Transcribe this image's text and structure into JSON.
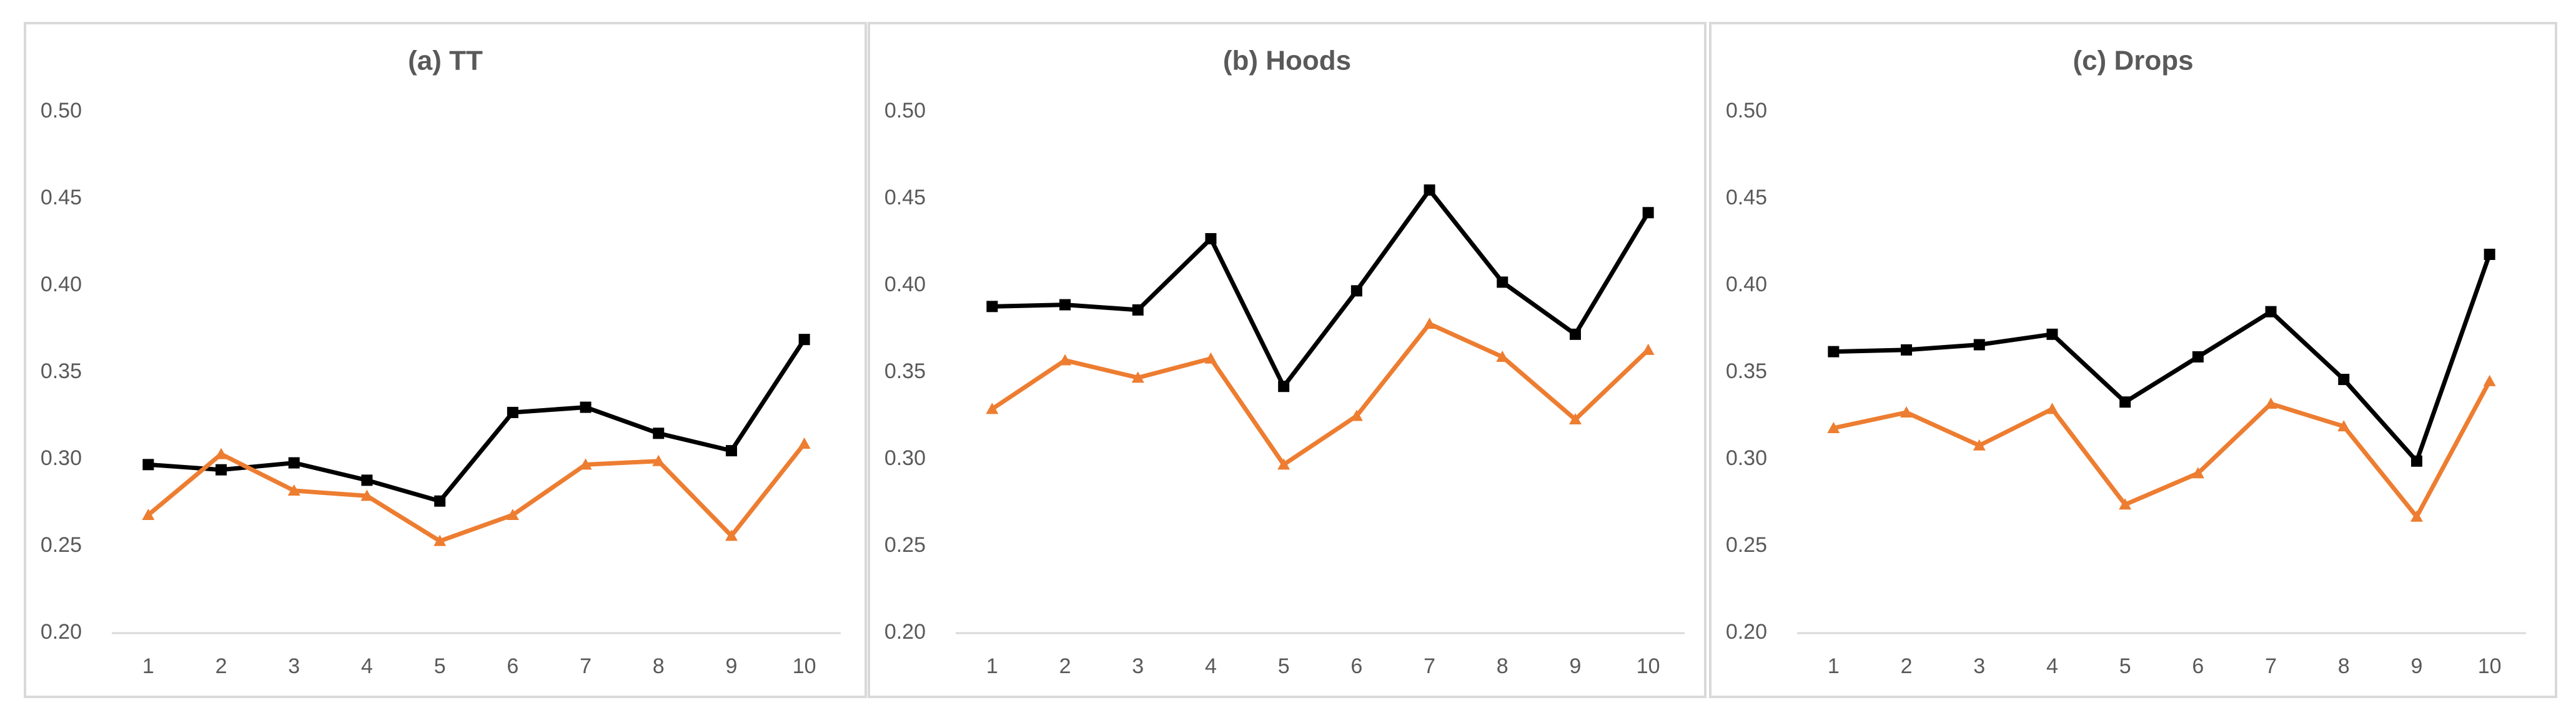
{
  "chart_data": [
    {
      "type": "line",
      "title": "(a) TT",
      "categories": [
        "1",
        "2",
        "3",
        "4",
        "5",
        "6",
        "7",
        "8",
        "9",
        "10"
      ],
      "series": [
        {
          "color": "#000000",
          "marker": "square",
          "values": [
            0.297,
            0.294,
            0.298,
            0.288,
            0.276,
            0.327,
            0.33,
            0.315,
            0.305,
            0.369
          ]
        },
        {
          "color": "#ed7d31",
          "marker": "triangle",
          "values": [
            0.268,
            0.303,
            0.282,
            0.279,
            0.253,
            0.268,
            0.297,
            0.299,
            0.256,
            0.309
          ]
        }
      ],
      "ylim": [
        0.2,
        0.5
      ],
      "yticks": [
        {
          "value": 0.2,
          "label": "0.20"
        },
        {
          "value": 0.25,
          "label": "0.25"
        },
        {
          "value": 0.3,
          "label": "0.30"
        },
        {
          "value": 0.35,
          "label": "0.35"
        },
        {
          "value": 0.4,
          "label": "0.40"
        },
        {
          "value": 0.45,
          "label": "0.45"
        },
        {
          "value": 0.5,
          "label": "0.50"
        }
      ],
      "grid": false
    },
    {
      "type": "line",
      "title": "(b) Hoods",
      "categories": [
        "1",
        "2",
        "3",
        "4",
        "5",
        "6",
        "7",
        "8",
        "9",
        "10"
      ],
      "series": [
        {
          "color": "#000000",
          "marker": "square",
          "values": [
            0.388,
            0.389,
            0.386,
            0.427,
            0.342,
            0.397,
            0.455,
            0.402,
            0.372,
            0.442
          ]
        },
        {
          "color": "#ed7d31",
          "marker": "triangle",
          "values": [
            0.329,
            0.357,
            0.347,
            0.358,
            0.297,
            0.325,
            0.378,
            0.359,
            0.323,
            0.363
          ]
        }
      ],
      "ylim": [
        0.2,
        0.5
      ],
      "yticks": [
        {
          "value": 0.2,
          "label": "0.20"
        },
        {
          "value": 0.25,
          "label": "0.25"
        },
        {
          "value": 0.3,
          "label": "0.30"
        },
        {
          "value": 0.35,
          "label": "0.35"
        },
        {
          "value": 0.4,
          "label": "0.40"
        },
        {
          "value": 0.45,
          "label": "0.45"
        },
        {
          "value": 0.5,
          "label": "0.50"
        }
      ],
      "grid": false
    },
    {
      "type": "line",
      "title": "(c) Drops",
      "categories": [
        "1",
        "2",
        "3",
        "4",
        "5",
        "6",
        "7",
        "8",
        "9",
        "10"
      ],
      "series": [
        {
          "color": "#000000",
          "marker": "square",
          "values": [
            0.362,
            0.363,
            0.366,
            0.372,
            0.333,
            0.359,
            0.385,
            0.346,
            0.299,
            0.418
          ]
        },
        {
          "color": "#ed7d31",
          "marker": "triangle",
          "values": [
            0.318,
            0.327,
            0.308,
            0.329,
            0.274,
            0.292,
            0.332,
            0.319,
            0.267,
            0.345
          ]
        }
      ],
      "ylim": [
        0.2,
        0.5
      ],
      "yticks": [
        {
          "value": 0.2,
          "label": "0.20"
        },
        {
          "value": 0.25,
          "label": "0.25"
        },
        {
          "value": 0.3,
          "label": "0.30"
        },
        {
          "value": 0.35,
          "label": "0.35"
        },
        {
          "value": 0.4,
          "label": "0.40"
        },
        {
          "value": 0.45,
          "label": "0.45"
        },
        {
          "value": 0.5,
          "label": "0.50"
        }
      ],
      "grid": false
    }
  ]
}
